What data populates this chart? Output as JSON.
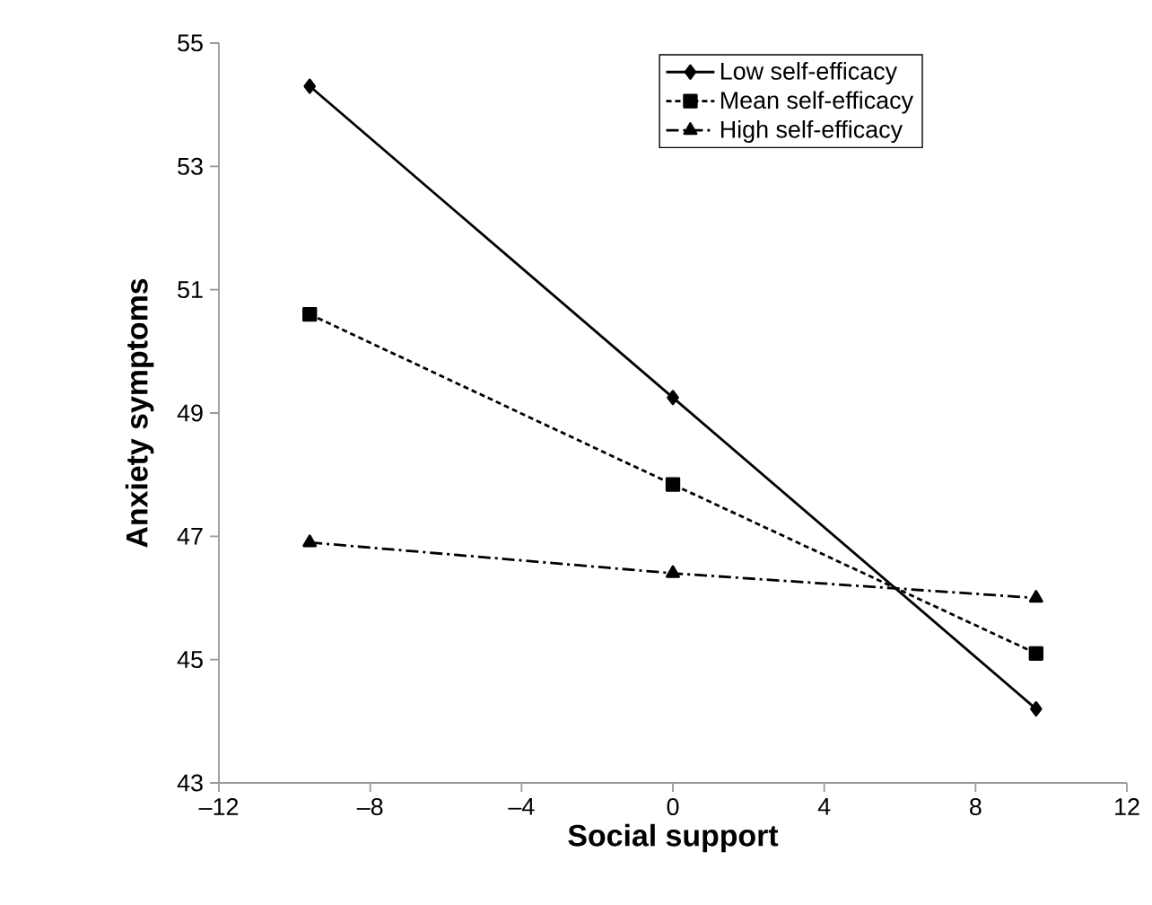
{
  "chart_data": {
    "type": "line",
    "xlabel": "Social support",
    "ylabel": "Anxiety symptoms",
    "x": [
      -9.6,
      0,
      9.6
    ],
    "series": [
      {
        "name": "Low self-efficacy",
        "color": "#000000",
        "values": [
          54.3,
          49.25,
          44.2
        ],
        "marker": "diamond",
        "line_style": "solid"
      },
      {
        "name": "Mean self-efficacy",
        "color": "#000000",
        "values": [
          50.6,
          47.84,
          45.1
        ],
        "marker": "square",
        "line_style": "dashed"
      },
      {
        "name": "High self-efficacy",
        "color": "#000000",
        "values": [
          46.9,
          46.4,
          46.0
        ],
        "marker": "triangle",
        "line_style": "dashdot"
      }
    ],
    "xlim": [
      -12,
      12
    ],
    "xticks": [
      {
        "value": -12,
        "label": "–12"
      },
      {
        "value": -8,
        "label": "–8"
      },
      {
        "value": -4,
        "label": "–4"
      },
      0,
      4,
      8,
      12
    ],
    "ylim": [
      43,
      55
    ],
    "yticks": [
      43,
      45,
      47,
      49,
      51,
      53,
      55
    ],
    "grid": false,
    "legend": "top right"
  }
}
